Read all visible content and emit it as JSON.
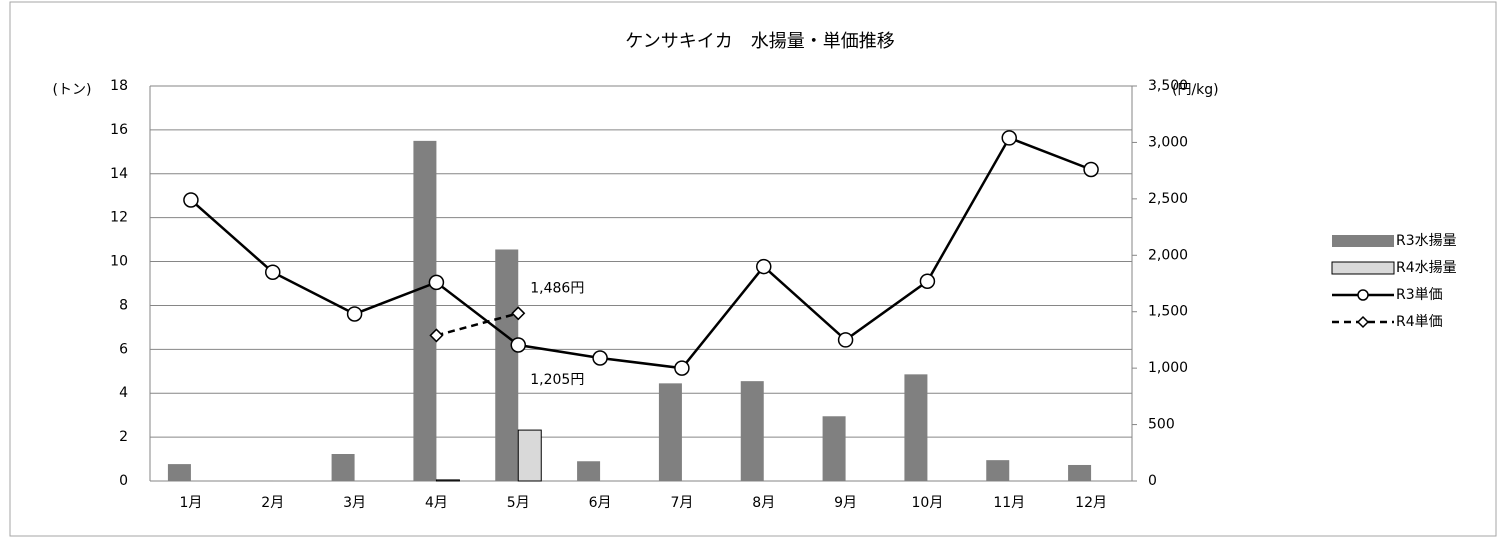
{
  "chart_data": {
    "type": "bar",
    "title": "ケンサキイカ　水揚量・単価推移",
    "y_label": "(トン)",
    "y2_label": "(円/kg)",
    "categories": [
      "1月",
      "2月",
      "3月",
      "4月",
      "5月",
      "6月",
      "7月",
      "8月",
      "9月",
      "10月",
      "11月",
      "12月"
    ],
    "series": [
      {
        "name": "R3水揚量",
        "type": "bar",
        "color": "#808080",
        "values": [
          0.77,
          0.02,
          1.23,
          15.5,
          10.55,
          0.9,
          4.45,
          4.55,
          2.95,
          4.86,
          0.95,
          0.73
        ]
      },
      {
        "name": "R4水揚量",
        "type": "bar",
        "color": "#d9d9d9",
        "values": [
          null,
          null,
          null,
          0.05,
          2.32,
          null,
          null,
          null,
          null,
          null,
          null,
          null
        ]
      },
      {
        "name": "R3単価",
        "type": "line",
        "axis": "y2",
        "color": "#000000",
        "dash": false,
        "marker": "circle",
        "values": [
          2490,
          1850,
          1480,
          1760,
          1205,
          1090,
          1000,
          1900,
          1250,
          1770,
          3040,
          2760
        ],
        "value_labels": [
          null,
          null,
          null,
          null,
          "1,205円",
          null,
          null,
          null,
          null,
          null,
          null,
          null
        ]
      },
      {
        "name": "R4単価",
        "type": "line",
        "axis": "y2",
        "color": "#000000",
        "dash": true,
        "marker": "diamond",
        "values": [
          null,
          null,
          null,
          1290,
          1486,
          null,
          null,
          null,
          null,
          null,
          null,
          null
        ],
        "value_labels": [
          null,
          null,
          null,
          null,
          "1,486円",
          null,
          null,
          null,
          null,
          null,
          null,
          null
        ]
      }
    ],
    "ylim": [
      0,
      18
    ],
    "yticks": [
      0,
      2,
      4,
      6,
      8,
      10,
      12,
      14,
      16,
      18
    ],
    "y2lim": [
      0,
      3500
    ],
    "y2ticks": [
      0,
      500,
      {
        "value": 1000,
        "label": "1,000"
      },
      {
        "value": 1500,
        "label": "1,500"
      },
      {
        "value": 2000,
        "label": "2,000"
      },
      {
        "value": 2500,
        "label": "2,500"
      },
      {
        "value": 3000,
        "label": "3,000"
      },
      {
        "value": 3500,
        "label": "3,500"
      }
    ],
    "grid": true,
    "legend": "right"
  }
}
